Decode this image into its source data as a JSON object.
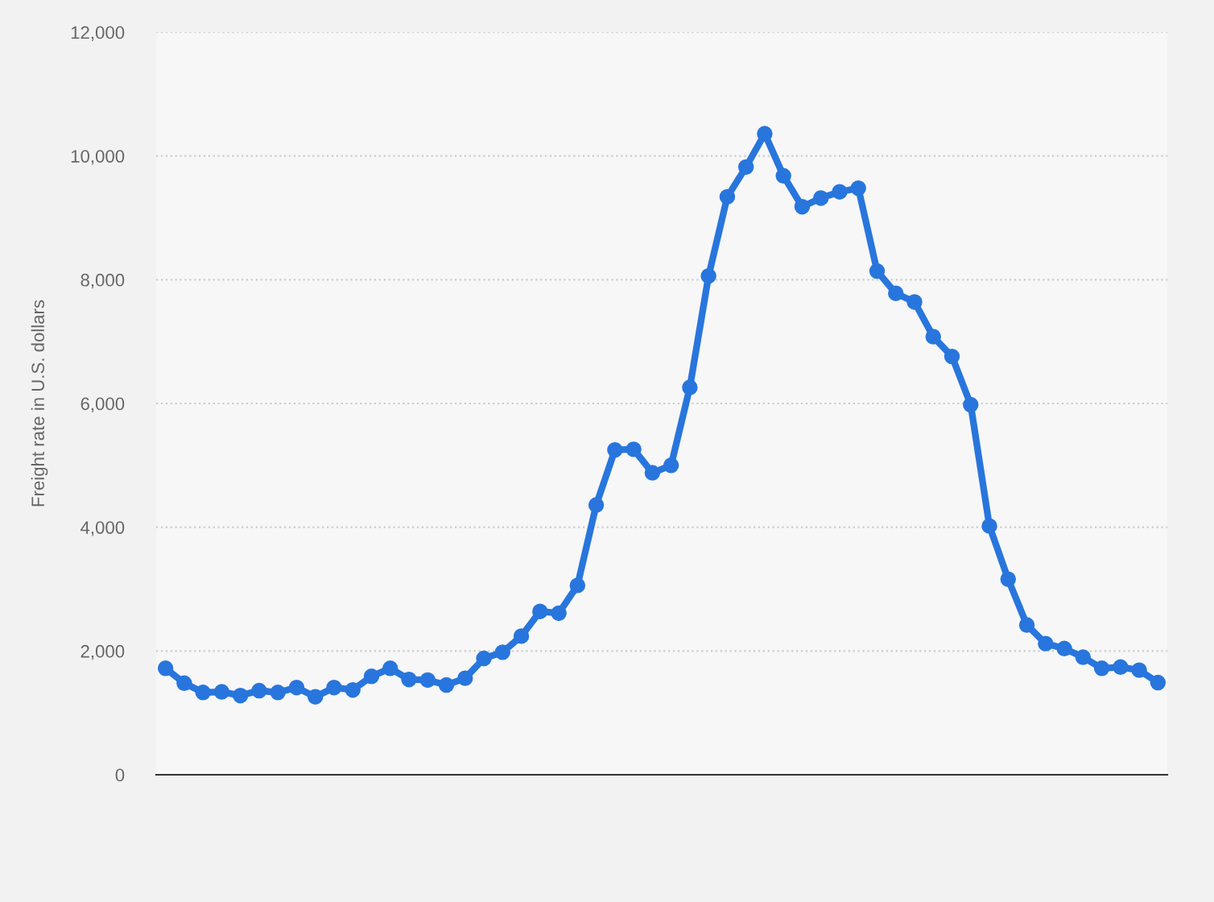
{
  "chart_data": {
    "type": "line",
    "ylabel": "Freight rate in U.S. dollars",
    "categories": [
      null,
      null,
      null,
      null,
      null,
      null,
      null,
      null,
      null,
      null,
      null,
      null,
      null,
      null,
      null,
      null,
      null,
      null,
      null,
      null,
      null,
      null,
      null,
      null,
      null,
      null,
      null,
      null,
      null,
      null,
      null,
      null,
      null,
      null,
      null,
      null,
      null,
      null,
      null,
      null,
      null,
      null,
      null,
      null,
      null,
      null,
      null,
      null,
      null,
      null,
      null,
      null,
      null,
      null
    ],
    "series": [
      {
        "color": "#2876dd",
        "values": [
          1720,
          1480,
          1330,
          1340,
          1280,
          1360,
          1330,
          1410,
          1260,
          1410,
          1370,
          1590,
          1720,
          1540,
          1530,
          1450,
          1560,
          1880,
          1980,
          2240,
          2640,
          2610,
          3060,
          4360,
          5250,
          5260,
          4880,
          5000,
          6260,
          8060,
          9340,
          9820,
          10360,
          9680,
          9180,
          9320,
          9420,
          9480,
          8140,
          7780,
          7640,
          7080,
          6760,
          5980,
          4020,
          3160,
          2420,
          2120,
          2040,
          1900,
          1720,
          1740,
          1690,
          1490
        ]
      }
    ],
    "ylim": [
      0,
      12000
    ],
    "yticks": [
      {
        "value": 0,
        "label": "0"
      },
      {
        "value": 2000,
        "label": "2,000"
      },
      {
        "value": 4000,
        "label": "4,000"
      },
      {
        "value": 6000,
        "label": "6,000"
      },
      {
        "value": 8000,
        "label": "8,000"
      },
      {
        "value": 10000,
        "label": "10,000"
      },
      {
        "value": 12000,
        "label": "12,000"
      }
    ],
    "grid": "y",
    "marker": "circle",
    "line_style": "solid",
    "legend": false,
    "tick_labels": "y"
  }
}
